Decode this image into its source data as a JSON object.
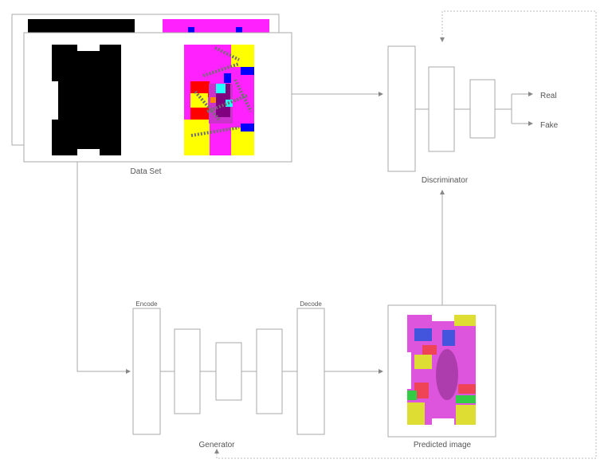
{
  "dataset": {
    "label": "Data Set"
  },
  "discriminator": {
    "label": "Discriminator",
    "outputs": [
      "Real",
      "Fake"
    ]
  },
  "generator": {
    "label": "Generator",
    "encode_label": "Encode",
    "decode_label": "Decode"
  },
  "predicted": {
    "label": "Predicted image"
  },
  "colors": {
    "line": "#aaaaaa",
    "magenta": "#ff22ff",
    "yellow": "#ffff00",
    "blue": "#0000ff",
    "red": "#ff0000",
    "cyan": "#22ffff",
    "purple": "#800080",
    "gray": "#707070"
  }
}
